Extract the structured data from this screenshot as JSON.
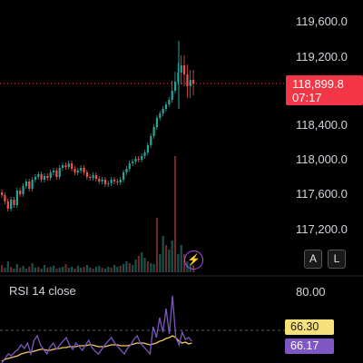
{
  "price_axis": {
    "labels": [
      "119,600.0",
      "119,200.0",
      "118,400.0",
      "118,000.0",
      "117,600.0",
      "117,200.0"
    ]
  },
  "current_price": {
    "value": "118,899.8",
    "countdown": "07:17",
    "color": "#f23645"
  },
  "buttons": {
    "auto": "A",
    "log": "L"
  },
  "rsi": {
    "title": "RSI 14 close",
    "upper_label": "80.00",
    "value_ma": "66.30",
    "value_rsi": "66.17"
  },
  "colors": {
    "up": "#26a69a",
    "down": "#ef5350",
    "rsi_line": "#7e57c2",
    "rsi_ma": "#f6c85f"
  },
  "icons": {
    "alert": "lightning-bolt-icon"
  }
}
